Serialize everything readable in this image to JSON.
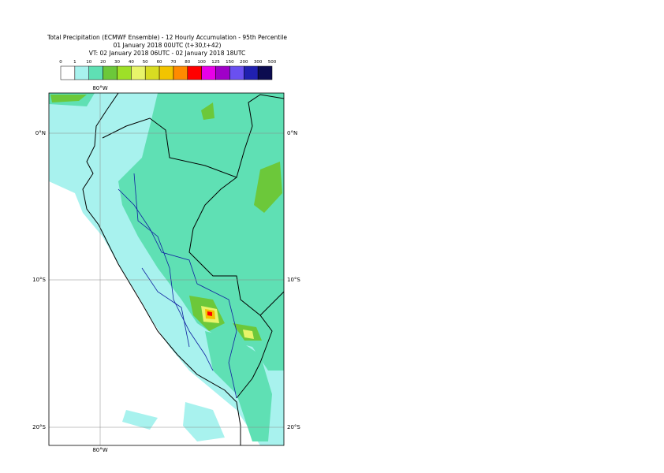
{
  "header": {
    "title": "Total Precipitation (ECMWF Ensemble) - 12 Hourly Accumulation - 95th Percentile",
    "base_time": "01 January 2018 00UTC (t+30,t+42)",
    "valid_time": "VT: 02 January 2018 06UTC - 02 January 2018 18UTC"
  },
  "legend": {
    "labels": [
      "0",
      "1",
      "10",
      "20",
      "30",
      "40",
      "50",
      "60",
      "70",
      "80",
      "100",
      "125",
      "150",
      "200",
      "300",
      "500"
    ],
    "colors": [
      "#ffffff",
      "#a8f2ee",
      "#5fe0b4",
      "#6cc83a",
      "#9ee028",
      "#e8f46a",
      "#d8dc22",
      "#f2c400",
      "#ff8a00",
      "#ff0000",
      "#e800e8",
      "#a000c8",
      "#6a50f0",
      "#2020b0",
      "#0c0c50"
    ]
  },
  "map": {
    "lon_labels": [
      "80°W"
    ],
    "lat_labels": [
      "0°N",
      "10°S",
      "20°S"
    ]
  }
}
